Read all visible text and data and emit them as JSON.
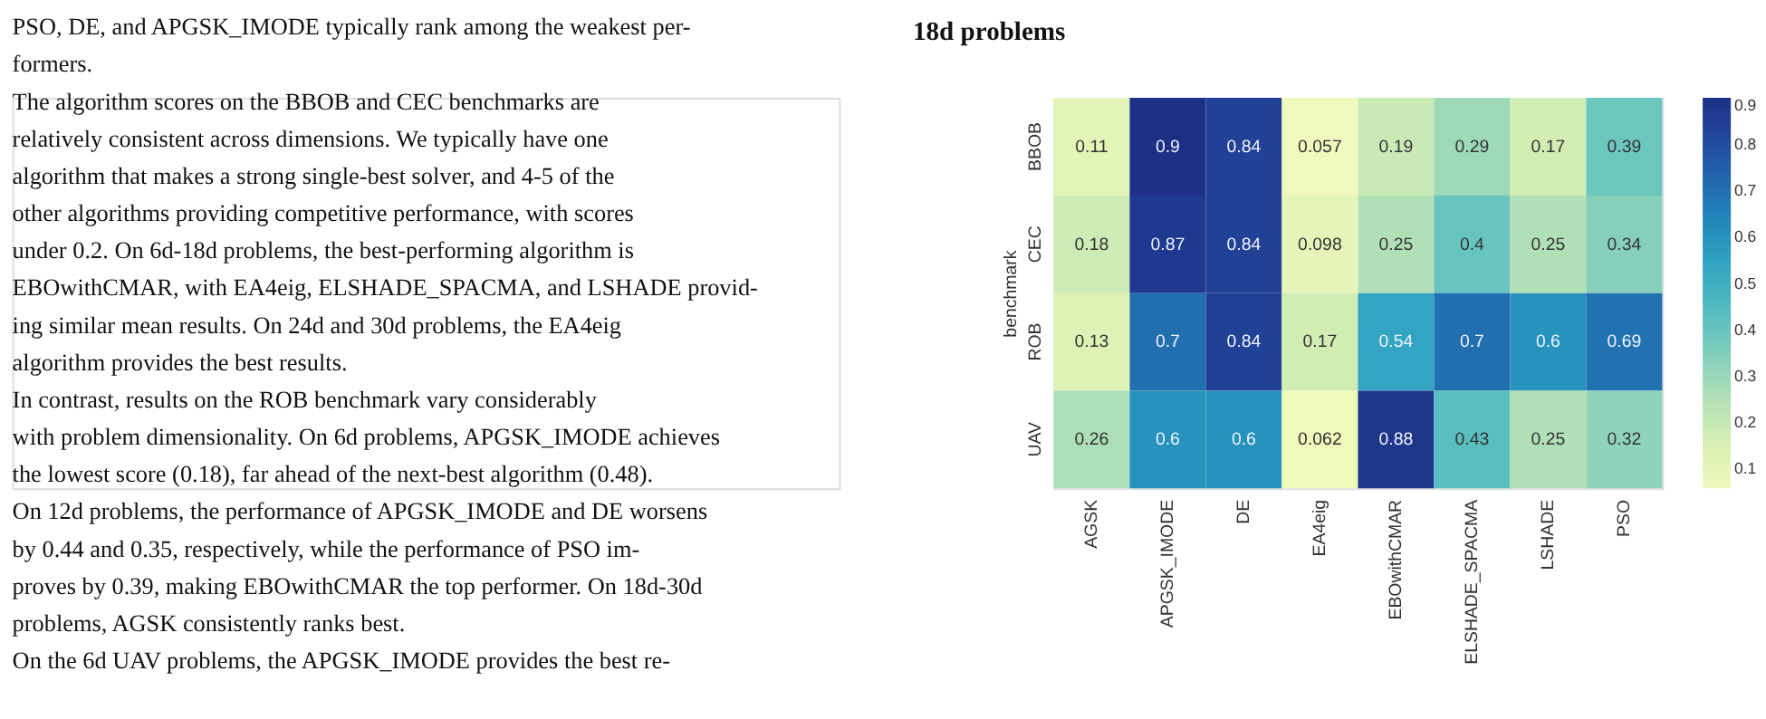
{
  "chart_data": {
    "type": "heatmap",
    "title": "18d problems",
    "xlabel": null,
    "ylabel": "benchmark",
    "categories": [
      "AGSK",
      "APGSK_IMODE",
      "DE",
      "EA4eig",
      "EBOwithCMAR",
      "ELSHADE_SPACMA",
      "LSHADE",
      "PSO"
    ],
    "y_categories": [
      "BBOB",
      "CEC",
      "ROB",
      "UAV"
    ],
    "cells": [
      [
        0.11,
        0.9,
        0.84,
        0.057,
        0.19,
        0.29,
        0.17,
        0.39
      ],
      [
        0.18,
        0.87,
        0.84,
        0.098,
        0.25,
        0.4,
        0.25,
        0.34
      ],
      [
        0.13,
        0.7,
        0.84,
        0.17,
        0.54,
        0.7,
        0.6,
        0.69
      ],
      [
        0.26,
        0.6,
        0.6,
        0.062,
        0.88,
        0.43,
        0.25,
        0.32
      ]
    ],
    "data_labels": true,
    "clim": [
      0.057,
      0.9
    ],
    "cticks": [
      0.1,
      0.2,
      0.3,
      0.4,
      0.5,
      0.6,
      0.7,
      0.8,
      0.9
    ],
    "annotations": [
      "PSO, DE, and APGSK_IMODE typically rank among the weakest per-",
      "formers.",
      "    The algorithm scores on the BBOB and CEC benchmarks are",
      "relatively consistent across dimensions. We typically have one",
      "algorithm that makes a strong single-best solver, and 4-5 of the",
      "other algorithms providing competitive performance, with scores",
      "under 0.2. On 6d-18d problems, the best-performing algorithm is",
      "EBOwithCMAR, with EA4eig, ELSHADE_SPACMA, and LSHADE provid-",
      "ing similar mean results. On 24d and 30d problems, the EA4eig",
      "algorithm provides the best results.",
      "    In contrast, results on the ROB benchmark vary considerably",
      "with problem dimensionality. On 6d problems, APGSK_IMODE achieves",
      "the lowest score (0.18), far ahead of the next-best algorithm (0.48).",
      "On 12d problems, the performance of APGSK_IMODE and DE worsens",
      "by 0.44 and 0.35, respectively, while the performance of PSO im-",
      "proves by 0.39, making EBOwithCMAR the top performer. On 18d-30d",
      "problems, AGSK consistently ranks best.",
      "    On the 6d UAV problems, the APGSK_IMODE provides the best re-"
    ]
  }
}
